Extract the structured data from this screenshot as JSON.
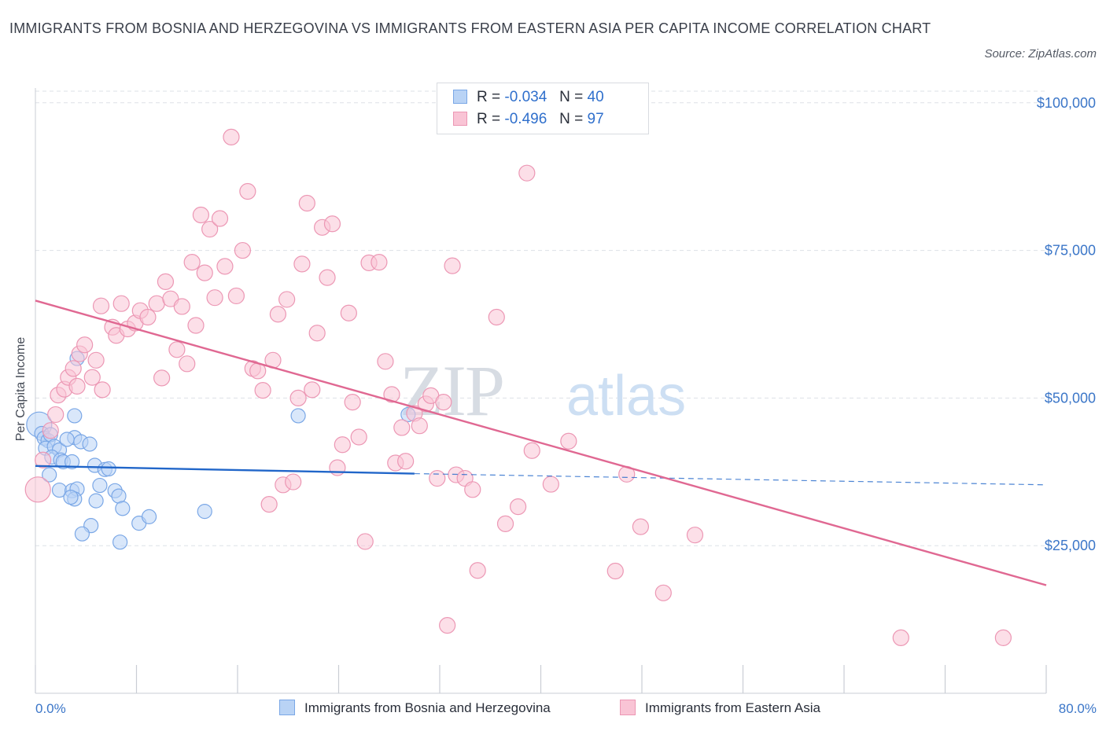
{
  "header": {
    "title": "IMMIGRANTS FROM BOSNIA AND HERZEGOVINA VS IMMIGRANTS FROM EASTERN ASIA PER CAPITA INCOME CORRELATION CHART",
    "source": "Source: ZipAtlas.com"
  },
  "legend": {
    "bosnia": {
      "r_label": "R =",
      "r_value": "-0.034",
      "n_label": "N =",
      "n_value": "40"
    },
    "eastasia": {
      "r_label": "R =",
      "r_value": "-0.496",
      "n_label": "N =",
      "n_value": "97"
    }
  },
  "colors": {
    "bosnia_fill": "#b9d3f5",
    "bosnia_stroke": "#7aa7e6",
    "bosnia_line": "#2166c9",
    "eastasia_fill": "#f9c4d5",
    "eastasia_stroke": "#ec97b4",
    "eastasia_line": "#e06892",
    "axis_text": "#3b76c8",
    "grid": "#dde1e7",
    "watermark": "#d7dce3"
  },
  "watermark": {
    "zip": "ZIP",
    "atlas": "atlas"
  },
  "chart_data": {
    "type": "scatter",
    "xlabel": "",
    "ylabel": "Per Capita Income",
    "xlim": [
      0,
      80
    ],
    "ylim": [
      0,
      102500
    ],
    "x_tick_labels": [
      "0.0%",
      "80.0%"
    ],
    "y_ticks": [
      {
        "value": 25000,
        "label": "$25,000"
      },
      {
        "value": 50000,
        "label": "$50,000"
      },
      {
        "value": 75000,
        "label": "$75,000"
      },
      {
        "value": 100000,
        "label": "$100,000"
      }
    ],
    "grid": true,
    "series": [
      {
        "name": "Immigrants from Bosnia and Herzegovina",
        "key": "bosnia",
        "trend": {
          "x0": 0,
          "y0": 38500,
          "x1": 30,
          "y1": 37200,
          "dash_x1": 80,
          "dash_y1": 35300
        },
        "points": [
          [
            0.3,
            45500,
            16
          ],
          [
            0.5,
            44000,
            9
          ],
          [
            0.7,
            43200,
            9
          ],
          [
            1.0,
            42800,
            9
          ],
          [
            1.2,
            43800,
            9
          ],
          [
            0.8,
            41500,
            9
          ],
          [
            1.5,
            41800,
            9
          ],
          [
            1.9,
            41200,
            9
          ],
          [
            1.3,
            40000,
            9
          ],
          [
            2.0,
            39500,
            9
          ],
          [
            2.2,
            39200,
            9
          ],
          [
            1.1,
            37000,
            9
          ],
          [
            2.9,
            39200,
            9
          ],
          [
            1.9,
            34400,
            9
          ],
          [
            2.9,
            34300,
            9
          ],
          [
            3.1,
            43300,
            9
          ],
          [
            2.5,
            43000,
            9
          ],
          [
            3.3,
            34600,
            9
          ],
          [
            3.1,
            32900,
            9
          ],
          [
            2.8,
            33200,
            9
          ],
          [
            3.6,
            42600,
            9
          ],
          [
            3.1,
            47000,
            9
          ],
          [
            3.3,
            56700,
            9
          ],
          [
            4.7,
            38600,
            9
          ],
          [
            4.3,
            42200,
            9
          ],
          [
            5.1,
            35200,
            9
          ],
          [
            5.5,
            37900,
            9
          ],
          [
            4.4,
            28400,
            9
          ],
          [
            3.7,
            27000,
            9
          ],
          [
            6.3,
            34300,
            9
          ],
          [
            6.6,
            33400,
            9
          ],
          [
            6.9,
            31300,
            9
          ],
          [
            8.2,
            28800,
            9
          ],
          [
            9.0,
            29900,
            9
          ],
          [
            13.4,
            30800,
            9
          ],
          [
            20.8,
            47000,
            9
          ],
          [
            29.5,
            47200,
            9
          ],
          [
            4.8,
            32600,
            9
          ],
          [
            5.8,
            38000,
            9
          ],
          [
            6.7,
            25600,
            9
          ]
        ]
      },
      {
        "name": "Immigrants from Eastern Asia",
        "key": "eastasia",
        "trend": {
          "x0": 0,
          "y0": 66500,
          "x1": 80,
          "y1": 18300
        },
        "points": [
          [
            0.2,
            34500,
            16
          ],
          [
            0.6,
            39500,
            10
          ],
          [
            1.2,
            44500,
            10
          ],
          [
            1.6,
            47200,
            10
          ],
          [
            1.8,
            50500,
            10
          ],
          [
            2.3,
            51500,
            10
          ],
          [
            2.6,
            53500,
            10
          ],
          [
            3.0,
            55000,
            10
          ],
          [
            3.3,
            52000,
            10
          ],
          [
            3.5,
            57500,
            10
          ],
          [
            3.9,
            59000,
            10
          ],
          [
            4.5,
            53500,
            10
          ],
          [
            4.8,
            56400,
            10
          ],
          [
            5.3,
            51400,
            10
          ],
          [
            5.2,
            65600,
            10
          ],
          [
            6.1,
            62000,
            10
          ],
          [
            6.4,
            60600,
            10
          ],
          [
            6.8,
            66000,
            10
          ],
          [
            7.3,
            61700,
            10
          ],
          [
            7.9,
            62700,
            10
          ],
          [
            8.3,
            64800,
            10
          ],
          [
            8.9,
            63700,
            10
          ],
          [
            9.6,
            66000,
            10
          ],
          [
            10.0,
            53400,
            10
          ],
          [
            10.3,
            69700,
            10
          ],
          [
            10.7,
            66800,
            10
          ],
          [
            11.2,
            58200,
            10
          ],
          [
            11.6,
            65500,
            10
          ],
          [
            12.0,
            55800,
            10
          ],
          [
            12.4,
            73000,
            10
          ],
          [
            12.7,
            62300,
            10
          ],
          [
            13.1,
            81000,
            10
          ],
          [
            13.4,
            71200,
            10
          ],
          [
            13.8,
            78600,
            10
          ],
          [
            14.2,
            67000,
            10
          ],
          [
            14.6,
            80400,
            10
          ],
          [
            15.0,
            72300,
            10
          ],
          [
            15.5,
            94200,
            10
          ],
          [
            15.9,
            67300,
            10
          ],
          [
            16.4,
            75000,
            10
          ],
          [
            16.8,
            85000,
            10
          ],
          [
            17.2,
            55000,
            10
          ],
          [
            17.6,
            54600,
            10
          ],
          [
            18.0,
            51300,
            10
          ],
          [
            18.5,
            32000,
            10
          ],
          [
            18.8,
            56400,
            10
          ],
          [
            19.2,
            64200,
            10
          ],
          [
            19.6,
            35300,
            10
          ],
          [
            19.9,
            66700,
            10
          ],
          [
            20.4,
            35800,
            10
          ],
          [
            20.8,
            50000,
            10
          ],
          [
            21.1,
            72700,
            10
          ],
          [
            21.5,
            83000,
            10
          ],
          [
            21.9,
            51400,
            10
          ],
          [
            22.3,
            61000,
            10
          ],
          [
            22.7,
            78900,
            10
          ],
          [
            23.1,
            70400,
            10
          ],
          [
            23.5,
            79500,
            10
          ],
          [
            23.9,
            38200,
            10
          ],
          [
            24.3,
            42100,
            10
          ],
          [
            24.8,
            64400,
            10
          ],
          [
            25.1,
            49300,
            10
          ],
          [
            25.6,
            43400,
            10
          ],
          [
            26.1,
            25700,
            10
          ],
          [
            26.4,
            72900,
            10
          ],
          [
            27.2,
            73000,
            10
          ],
          [
            27.7,
            56200,
            10
          ],
          [
            28.2,
            50600,
            10
          ],
          [
            28.5,
            39000,
            10
          ],
          [
            29.0,
            45000,
            10
          ],
          [
            29.3,
            39300,
            10
          ],
          [
            30.0,
            47400,
            10
          ],
          [
            30.4,
            45300,
            10
          ],
          [
            30.9,
            49000,
            10
          ],
          [
            31.3,
            50400,
            10
          ],
          [
            31.8,
            36400,
            10
          ],
          [
            32.3,
            49300,
            10
          ],
          [
            32.6,
            11500,
            10
          ],
          [
            33.0,
            72400,
            10
          ],
          [
            33.3,
            37000,
            10
          ],
          [
            34.0,
            36400,
            10
          ],
          [
            34.6,
            34500,
            10
          ],
          [
            35.0,
            20800,
            10
          ],
          [
            36.5,
            63700,
            10
          ],
          [
            37.2,
            28700,
            10
          ],
          [
            38.2,
            31600,
            10
          ],
          [
            38.9,
            88100,
            10
          ],
          [
            39.3,
            41100,
            10
          ],
          [
            40.8,
            35400,
            10
          ],
          [
            42.2,
            42700,
            10
          ],
          [
            45.9,
            20700,
            10
          ],
          [
            46.8,
            37100,
            10
          ],
          [
            47.9,
            28200,
            10
          ],
          [
            49.7,
            17000,
            10
          ],
          [
            52.2,
            26800,
            10
          ],
          [
            68.5,
            9400,
            10
          ],
          [
            76.6,
            9400,
            10
          ]
        ]
      }
    ]
  }
}
